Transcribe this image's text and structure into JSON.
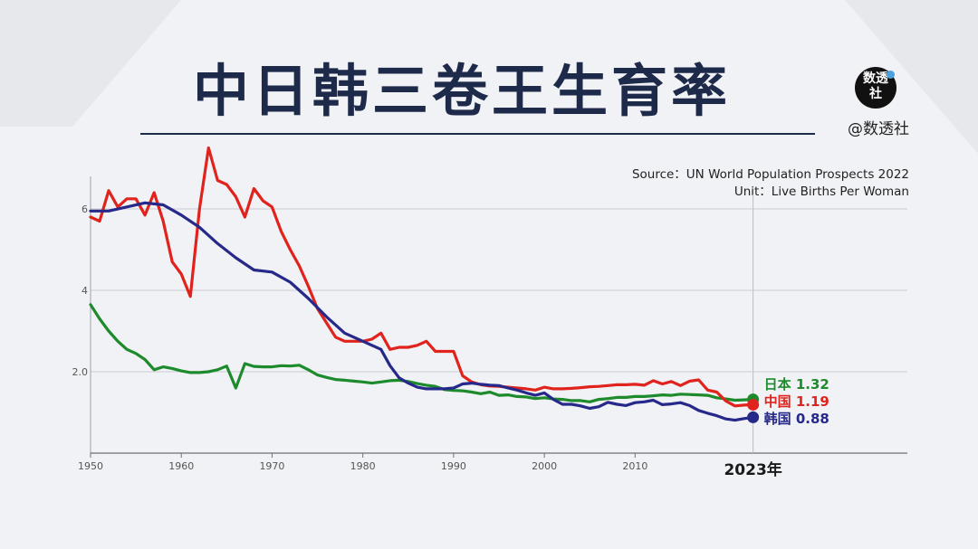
{
  "title": "中日韩三卷王生育率",
  "brand": {
    "logo_text": "数透社",
    "handle": "@数透社"
  },
  "source_line": "Source：UN World Population Prospects 2022",
  "unit_line": "Unit：Live Births Per Woman",
  "chart_data": {
    "type": "line",
    "title": "中日韩三卷王生育率",
    "xlim": [
      1950,
      2040
    ],
    "ylim": [
      0,
      6.8
    ],
    "x_ticks": [
      1950,
      1960,
      1970,
      1980,
      1990,
      2000,
      2010
    ],
    "y_ticks": [
      {
        "value": 2,
        "label": "2.0"
      },
      {
        "value": 4,
        "label": "4"
      },
      {
        "value": 6,
        "label": "6"
      }
    ],
    "grid": true,
    "marker_year": 2023,
    "marker_label": "2023年",
    "series": [
      {
        "name": "日本",
        "end_value": "1.32",
        "color": "#1d8a2c",
        "points": [
          [
            1950,
            3.65
          ],
          [
            1951,
            3.3
          ],
          [
            1952,
            3.0
          ],
          [
            1953,
            2.75
          ],
          [
            1954,
            2.55
          ],
          [
            1955,
            2.45
          ],
          [
            1956,
            2.3
          ],
          [
            1957,
            2.05
          ],
          [
            1958,
            2.12
          ],
          [
            1959,
            2.08
          ],
          [
            1960,
            2.02
          ],
          [
            1961,
            1.98
          ],
          [
            1962,
            1.98
          ],
          [
            1963,
            2.0
          ],
          [
            1964,
            2.05
          ],
          [
            1965,
            2.14
          ],
          [
            1966,
            1.6
          ],
          [
            1967,
            2.2
          ],
          [
            1968,
            2.13
          ],
          [
            1969,
            2.12
          ],
          [
            1970,
            2.12
          ],
          [
            1971,
            2.15
          ],
          [
            1972,
            2.14
          ],
          [
            1973,
            2.16
          ],
          [
            1974,
            2.05
          ],
          [
            1975,
            1.92
          ],
          [
            1976,
            1.86
          ],
          [
            1977,
            1.81
          ],
          [
            1978,
            1.79
          ],
          [
            1979,
            1.77
          ],
          [
            1980,
            1.75
          ],
          [
            1981,
            1.72
          ],
          [
            1982,
            1.75
          ],
          [
            1983,
            1.78
          ],
          [
            1984,
            1.79
          ],
          [
            1985,
            1.76
          ],
          [
            1986,
            1.71
          ],
          [
            1987,
            1.67
          ],
          [
            1988,
            1.64
          ],
          [
            1989,
            1.56
          ],
          [
            1990,
            1.54
          ],
          [
            1991,
            1.53
          ],
          [
            1992,
            1.5
          ],
          [
            1993,
            1.46
          ],
          [
            1994,
            1.5
          ],
          [
            1995,
            1.42
          ],
          [
            1996,
            1.43
          ],
          [
            1997,
            1.39
          ],
          [
            1998,
            1.38
          ],
          [
            1999,
            1.34
          ],
          [
            2000,
            1.36
          ],
          [
            2001,
            1.33
          ],
          [
            2002,
            1.32
          ],
          [
            2003,
            1.29
          ],
          [
            2004,
            1.29
          ],
          [
            2005,
            1.26
          ],
          [
            2006,
            1.32
          ],
          [
            2007,
            1.34
          ],
          [
            2008,
            1.37
          ],
          [
            2009,
            1.37
          ],
          [
            2010,
            1.39
          ],
          [
            2011,
            1.39
          ],
          [
            2012,
            1.41
          ],
          [
            2013,
            1.43
          ],
          [
            2014,
            1.42
          ],
          [
            2015,
            1.45
          ],
          [
            2016,
            1.44
          ],
          [
            2017,
            1.43
          ],
          [
            2018,
            1.42
          ],
          [
            2019,
            1.36
          ],
          [
            2020,
            1.33
          ],
          [
            2021,
            1.3
          ],
          [
            2022,
            1.31
          ],
          [
            2023,
            1.32
          ]
        ]
      },
      {
        "name": "中国",
        "end_value": "1.19",
        "color": "#e0231c",
        "points": [
          [
            1950,
            5.8
          ],
          [
            1951,
            5.7
          ],
          [
            1952,
            6.45
          ],
          [
            1953,
            6.05
          ],
          [
            1954,
            6.25
          ],
          [
            1955,
            6.25
          ],
          [
            1956,
            5.85
          ],
          [
            1957,
            6.4
          ],
          [
            1958,
            5.7
          ],
          [
            1959,
            4.7
          ],
          [
            1960,
            4.4
          ],
          [
            1961,
            3.85
          ],
          [
            1962,
            6.0
          ],
          [
            1963,
            7.5
          ],
          [
            1964,
            6.7
          ],
          [
            1965,
            6.6
          ],
          [
            1966,
            6.3
          ],
          [
            1967,
            5.8
          ],
          [
            1968,
            6.5
          ],
          [
            1969,
            6.2
          ],
          [
            1970,
            6.05
          ],
          [
            1971,
            5.45
          ],
          [
            1972,
            5.0
          ],
          [
            1973,
            4.6
          ],
          [
            1974,
            4.1
          ],
          [
            1975,
            3.55
          ],
          [
            1976,
            3.2
          ],
          [
            1977,
            2.85
          ],
          [
            1978,
            2.75
          ],
          [
            1979,
            2.75
          ],
          [
            1980,
            2.75
          ],
          [
            1981,
            2.8
          ],
          [
            1982,
            2.95
          ],
          [
            1983,
            2.55
          ],
          [
            1984,
            2.6
          ],
          [
            1985,
            2.6
          ],
          [
            1986,
            2.65
          ],
          [
            1987,
            2.75
          ],
          [
            1988,
            2.5
          ],
          [
            1989,
            2.5
          ],
          [
            1990,
            2.5
          ],
          [
            1991,
            1.9
          ],
          [
            1992,
            1.75
          ],
          [
            1993,
            1.68
          ],
          [
            1994,
            1.65
          ],
          [
            1995,
            1.64
          ],
          [
            1996,
            1.62
          ],
          [
            1997,
            1.6
          ],
          [
            1998,
            1.58
          ],
          [
            1999,
            1.55
          ],
          [
            2000,
            1.62
          ],
          [
            2001,
            1.58
          ],
          [
            2002,
            1.58
          ],
          [
            2003,
            1.59
          ],
          [
            2004,
            1.61
          ],
          [
            2005,
            1.63
          ],
          [
            2006,
            1.64
          ],
          [
            2007,
            1.66
          ],
          [
            2008,
            1.68
          ],
          [
            2009,
            1.68
          ],
          [
            2010,
            1.69
          ],
          [
            2011,
            1.67
          ],
          [
            2012,
            1.78
          ],
          [
            2013,
            1.7
          ],
          [
            2014,
            1.76
          ],
          [
            2015,
            1.66
          ],
          [
            2016,
            1.77
          ],
          [
            2017,
            1.8
          ],
          [
            2018,
            1.55
          ],
          [
            2019,
            1.5
          ],
          [
            2020,
            1.28
          ],
          [
            2021,
            1.16
          ],
          [
            2022,
            1.18
          ],
          [
            2023,
            1.19
          ]
        ]
      },
      {
        "name": "韩国",
        "end_value": "0.88",
        "color": "#26288a",
        "points": [
          [
            1950,
            5.95
          ],
          [
            1952,
            5.95
          ],
          [
            1954,
            6.05
          ],
          [
            1956,
            6.15
          ],
          [
            1958,
            6.1
          ],
          [
            1960,
            5.85
          ],
          [
            1962,
            5.55
          ],
          [
            1964,
            5.15
          ],
          [
            1966,
            4.8
          ],
          [
            1968,
            4.5
          ],
          [
            1970,
            4.45
          ],
          [
            1972,
            4.2
          ],
          [
            1974,
            3.8
          ],
          [
            1976,
            3.35
          ],
          [
            1978,
            2.95
          ],
          [
            1980,
            2.75
          ],
          [
            1982,
            2.55
          ],
          [
            1983,
            2.15
          ],
          [
            1984,
            1.85
          ],
          [
            1985,
            1.72
          ],
          [
            1986,
            1.62
          ],
          [
            1987,
            1.58
          ],
          [
            1988,
            1.58
          ],
          [
            1989,
            1.58
          ],
          [
            1990,
            1.6
          ],
          [
            1991,
            1.7
          ],
          [
            1992,
            1.72
          ],
          [
            1993,
            1.69
          ],
          [
            1994,
            1.67
          ],
          [
            1995,
            1.66
          ],
          [
            1996,
            1.6
          ],
          [
            1997,
            1.55
          ],
          [
            1998,
            1.48
          ],
          [
            1999,
            1.42
          ],
          [
            2000,
            1.48
          ],
          [
            2001,
            1.32
          ],
          [
            2002,
            1.2
          ],
          [
            2003,
            1.2
          ],
          [
            2004,
            1.16
          ],
          [
            2005,
            1.1
          ],
          [
            2006,
            1.14
          ],
          [
            2007,
            1.25
          ],
          [
            2008,
            1.2
          ],
          [
            2009,
            1.17
          ],
          [
            2010,
            1.24
          ],
          [
            2011,
            1.26
          ],
          [
            2012,
            1.3
          ],
          [
            2013,
            1.19
          ],
          [
            2014,
            1.21
          ],
          [
            2015,
            1.24
          ],
          [
            2016,
            1.17
          ],
          [
            2017,
            1.05
          ],
          [
            2018,
            0.98
          ],
          [
            2019,
            0.92
          ],
          [
            2020,
            0.84
          ],
          [
            2021,
            0.81
          ],
          [
            2022,
            0.85
          ],
          [
            2023,
            0.88
          ]
        ]
      }
    ],
    "legend_order": [
      "日本",
      "中国",
      "韩国"
    ]
  }
}
